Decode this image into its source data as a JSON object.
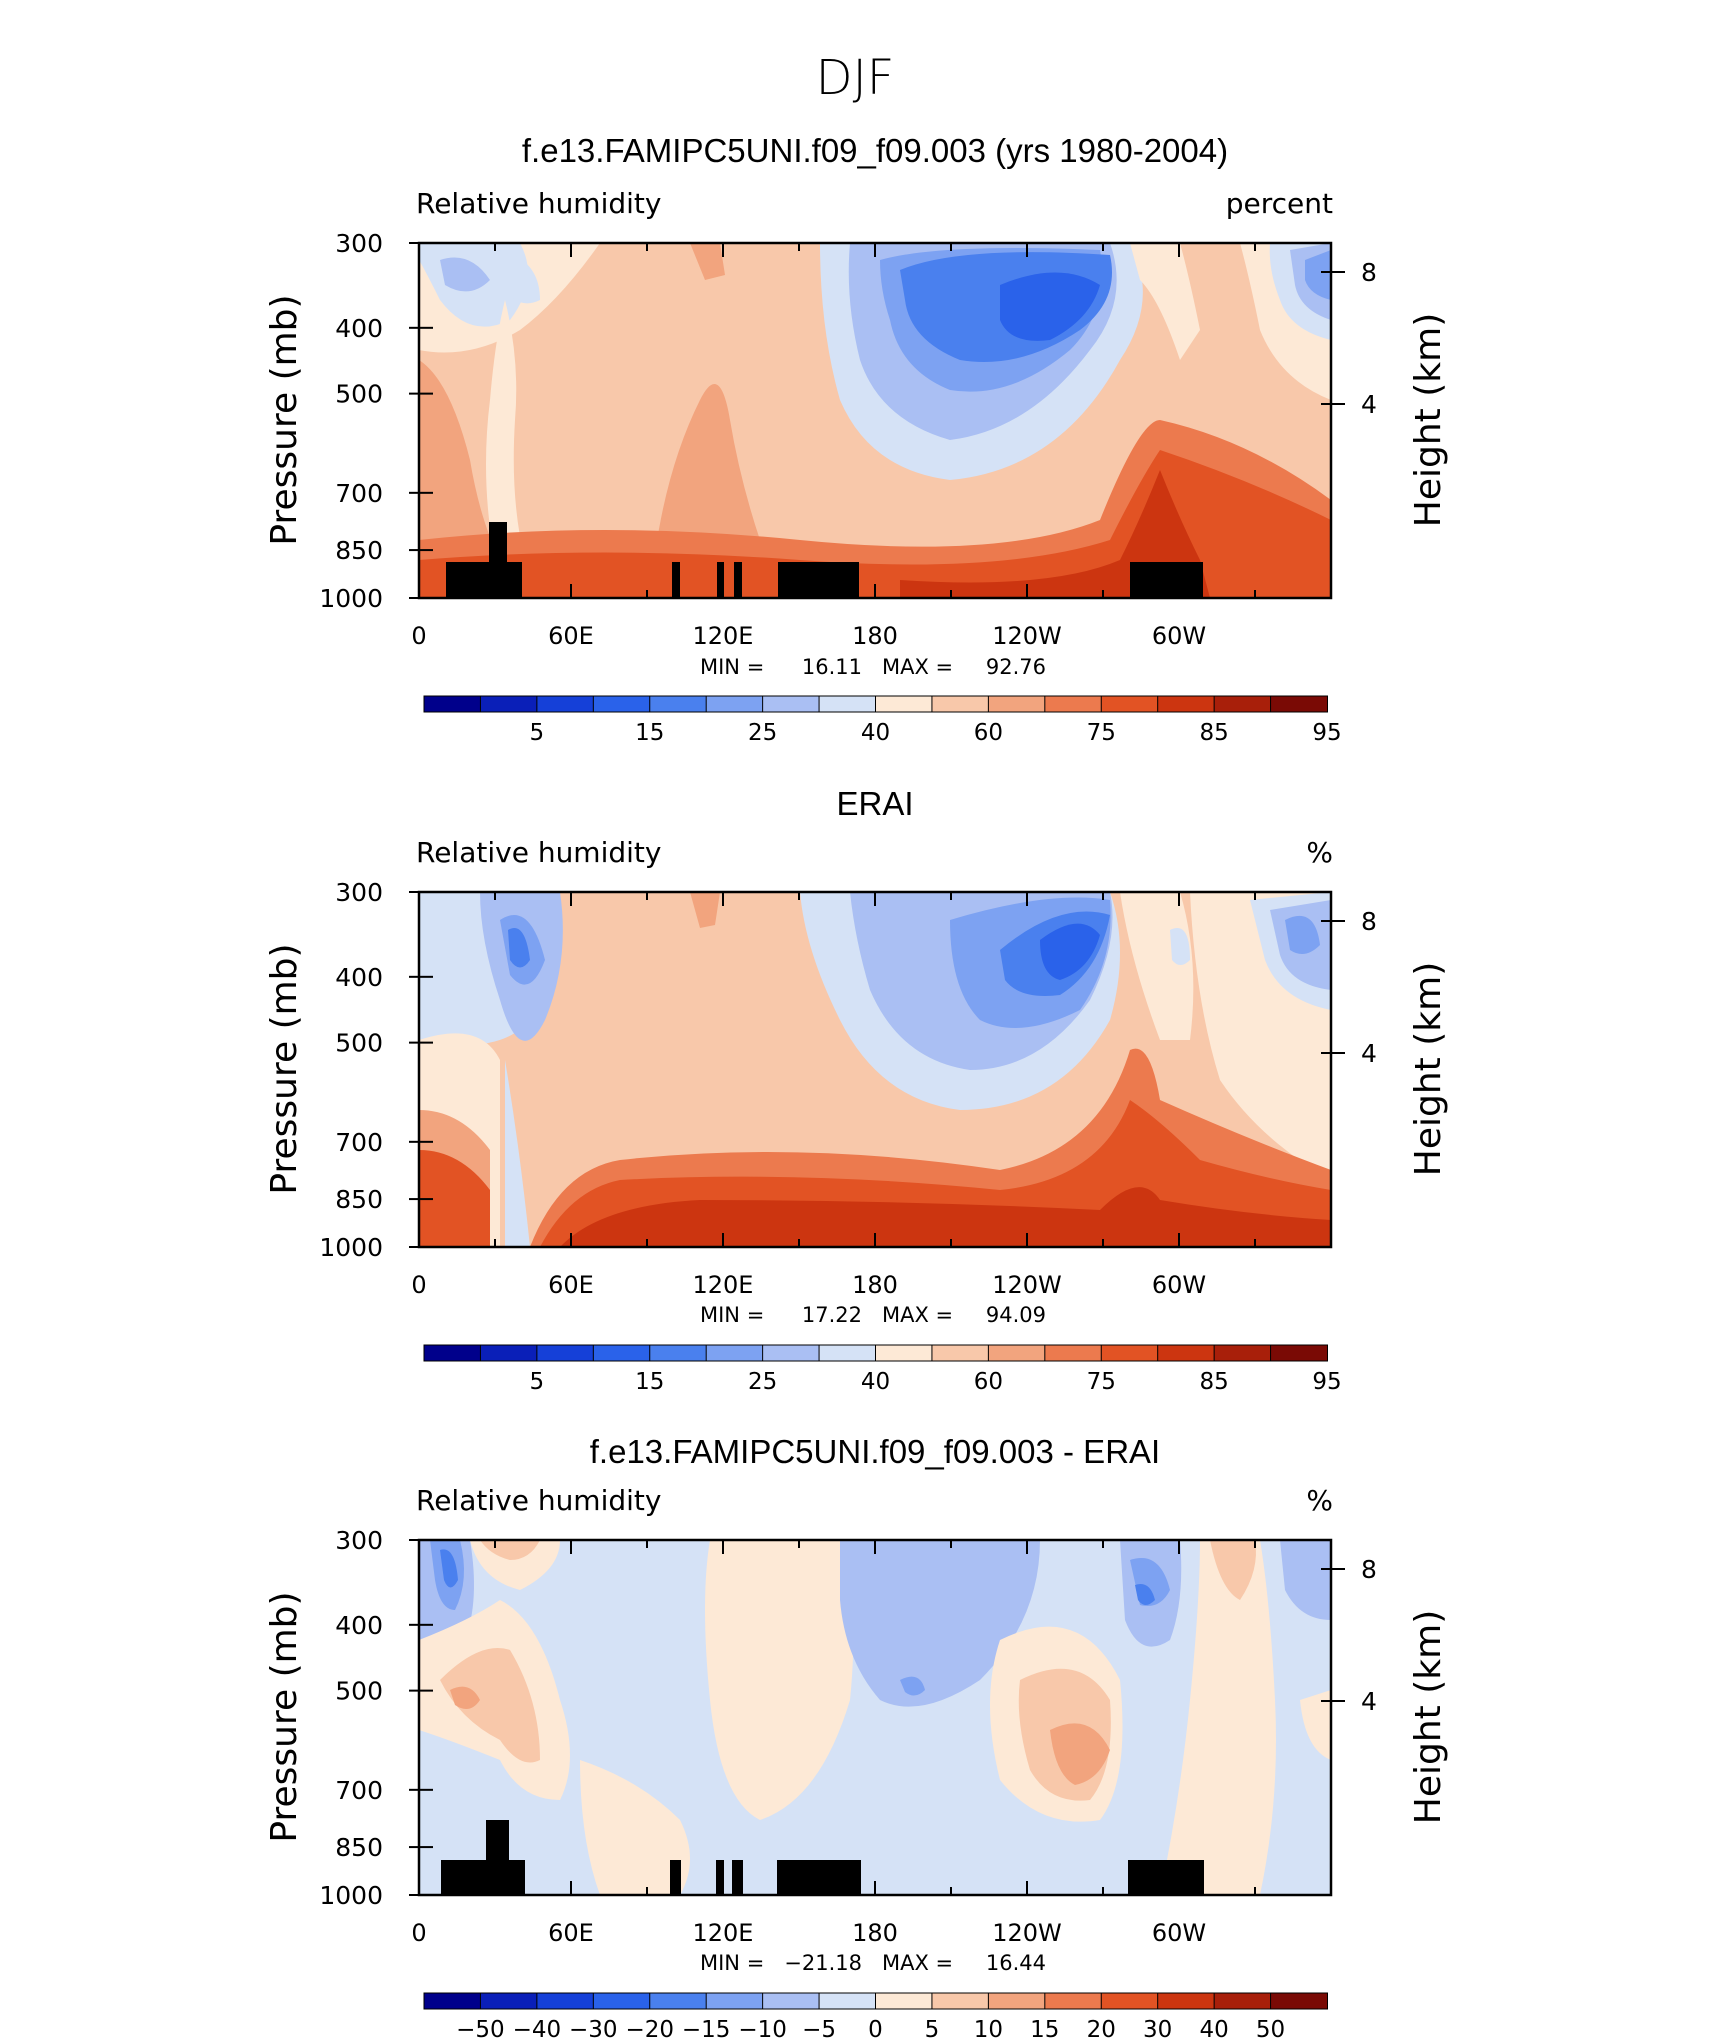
{
  "figure": {
    "title": "DJF"
  },
  "chart_data": [
    {
      "type": "heatmap",
      "title": "f.e13.FAMIPC5UNI.f09_f09.003 (yrs 1980-2004)",
      "left_label": "Relative humidity",
      "right_label": "percent",
      "ylabel": "Pressure (mb)",
      "ylabel_right": "Height (km)",
      "x_ticks": [
        "0",
        "60E",
        "120E",
        "180",
        "120W",
        "60W"
      ],
      "y_ticks": [
        "300",
        "400",
        "500",
        "700",
        "850",
        "1000"
      ],
      "y_right_ticks": [
        "8",
        "4"
      ],
      "stats": {
        "min_label": "MIN =",
        "min": "16.11",
        "max_label": "MAX =",
        "max": "92.76"
      },
      "colorbar_labels": [
        "5",
        "15",
        "25",
        "40",
        "60",
        "75",
        "85",
        "95"
      ]
    },
    {
      "type": "heatmap",
      "title": "ERAI",
      "left_label": "Relative humidity",
      "right_label": "%",
      "ylabel": "Pressure (mb)",
      "ylabel_right": "Height (km)",
      "x_ticks": [
        "0",
        "60E",
        "120E",
        "180",
        "120W",
        "60W"
      ],
      "y_ticks": [
        "300",
        "400",
        "500",
        "700",
        "850",
        "1000"
      ],
      "y_right_ticks": [
        "8",
        "4"
      ],
      "stats": {
        "min_label": "MIN =",
        "min": "17.22",
        "max_label": "MAX =",
        "max": "94.09"
      },
      "colorbar_labels": [
        "5",
        "15",
        "25",
        "40",
        "60",
        "75",
        "85",
        "95"
      ]
    },
    {
      "type": "heatmap",
      "title": "f.e13.FAMIPC5UNI.f09_f09.003 - ERAI",
      "left_label": "Relative humidity",
      "right_label": "%",
      "ylabel": "Pressure (mb)",
      "ylabel_right": "Height (km)",
      "x_ticks": [
        "0",
        "60E",
        "120E",
        "180",
        "120W",
        "60W"
      ],
      "y_ticks": [
        "300",
        "400",
        "500",
        "700",
        "850",
        "1000"
      ],
      "y_right_ticks": [
        "8",
        "4"
      ],
      "stats": {
        "min_label": "MIN =",
        "min": "−21.18",
        "max_label": "MAX =",
        "max": "16.44"
      },
      "colorbar_labels": [
        "−50",
        "−40",
        "−30",
        "−20",
        "−15",
        "−10",
        "−5",
        "0",
        "5",
        "10",
        "15",
        "20",
        "30",
        "40",
        "50"
      ]
    }
  ],
  "palette": [
    "#00008b",
    "#0a1fb8",
    "#1540d8",
    "#2a62ea",
    "#4a80ee",
    "#7da2f2",
    "#aabff3",
    "#d5e2f6",
    "#fde9d6",
    "#f8c8aa",
    "#f2a47e",
    "#ec7a4e",
    "#e25324",
    "#cc3510",
    "#a81f0a",
    "#7a0a05"
  ],
  "diff_palette": [
    "#00008b",
    "#0a1fb8",
    "#1540d8",
    "#2a62ea",
    "#4a80ee",
    "#7da2f2",
    "#aabff3",
    "#d5e2f6",
    "#fde9d6",
    "#f8c8aa",
    "#f2a47e",
    "#ec7a4e",
    "#e25324",
    "#cc3510",
    "#a81f0a",
    "#7a0a05"
  ]
}
